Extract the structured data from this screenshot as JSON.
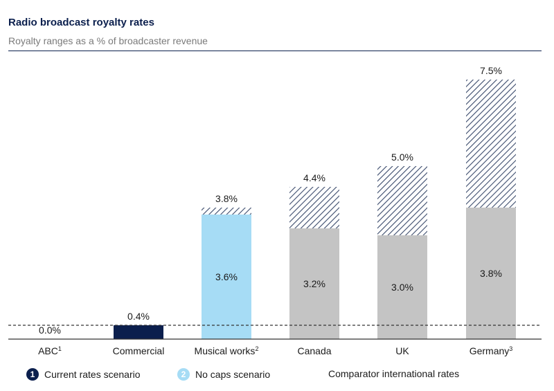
{
  "header": {
    "title": "Radio broadcast royalty rates",
    "subtitle": "Royalty ranges as a % of broadcaster revenue"
  },
  "chart_data": {
    "type": "bar",
    "title": "Radio broadcast royalty rates",
    "subtitle": "Royalty ranges as a % of broadcaster revenue",
    "unit": "%",
    "categories": [
      {
        "name": "ABC",
        "sup": "1"
      },
      {
        "name": "Commercial",
        "sup": ""
      },
      {
        "name": "Musical works",
        "sup": "2"
      },
      {
        "name": "Canada",
        "sup": ""
      },
      {
        "name": "UK",
        "sup": ""
      },
      {
        "name": "Germany",
        "sup": "3"
      }
    ],
    "bars": [
      {
        "category": "ABC",
        "base": 0.0,
        "top": 0.0,
        "style": "navy",
        "base_label": "",
        "top_label": "0.0%"
      },
      {
        "category": "Commercial",
        "base": 0.4,
        "top": 0.4,
        "style": "navy",
        "base_label": "",
        "top_label": "0.4%"
      },
      {
        "category": "Musical works",
        "base": 3.6,
        "top": 3.8,
        "style": "lightblue",
        "base_label": "3.6%",
        "top_label": "3.8%"
      },
      {
        "category": "Canada",
        "base": 3.2,
        "top": 4.4,
        "style": "grey",
        "base_label": "3.2%",
        "top_label": "4.4%"
      },
      {
        "category": "UK",
        "base": 3.0,
        "top": 5.0,
        "style": "grey",
        "base_label": "3.0%",
        "top_label": "5.0%"
      },
      {
        "category": "Germany",
        "base": 3.8,
        "top": 7.5,
        "style": "grey",
        "base_label": "3.8%",
        "top_label": "7.5%"
      }
    ],
    "reference_line": {
      "value": 0.4,
      "style": "dashed"
    },
    "ylim": [
      0,
      7.5
    ],
    "grid": false,
    "legend_position": "bottom"
  },
  "legend": [
    {
      "marker": "1",
      "label": "Current rates scenario",
      "color": "#0b1f4d"
    },
    {
      "marker": "2",
      "label": "No caps scenario",
      "color": "#a6dcf5"
    },
    {
      "marker": "",
      "label": "Comparator international rates",
      "color": ""
    }
  ],
  "colors": {
    "navy": "#0b1f4d",
    "lightblue": "#a6dcf5",
    "grey": "#c4c4c4",
    "hatch": "#3a4a6b",
    "axis": "#333333"
  }
}
